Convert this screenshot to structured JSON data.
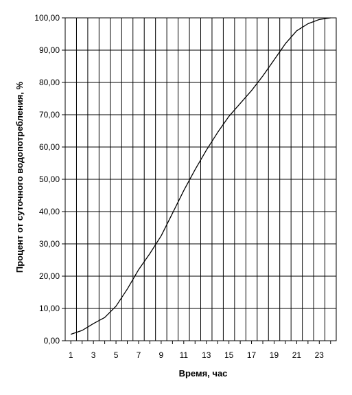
{
  "chart_data": {
    "type": "line",
    "xlabel": "Время, час",
    "ylabel": "Процент от суточного водопотребления, %",
    "xlim": [
      1,
      24
    ],
    "ylim": [
      0,
      100
    ],
    "x_ticks": [
      1,
      3,
      5,
      7,
      9,
      11,
      13,
      15,
      17,
      19,
      21,
      23
    ],
    "y_ticks": [
      "0,00",
      "10,00",
      "20,00",
      "30,00",
      "40,00",
      "50,00",
      "60,00",
      "70,00",
      "80,00",
      "90,00",
      "100,00"
    ],
    "grid": true,
    "legend": "none",
    "series": [
      {
        "color": "#000000",
        "x": [
          1,
          2,
          3,
          4,
          5,
          6,
          7,
          8,
          9,
          10,
          11,
          12,
          13,
          14,
          15,
          16,
          17,
          18,
          19,
          20,
          21,
          22,
          23,
          24
        ],
        "y": [
          2.0,
          3.2,
          5.3,
          7.2,
          10.7,
          16.0,
          22.0,
          27.0,
          32.5,
          39.5,
          46.5,
          53.0,
          59.0,
          64.5,
          69.5,
          73.5,
          77.5,
          82.0,
          87.0,
          92.0,
          96.0,
          98.2,
          99.5,
          100.0
        ]
      }
    ]
  }
}
